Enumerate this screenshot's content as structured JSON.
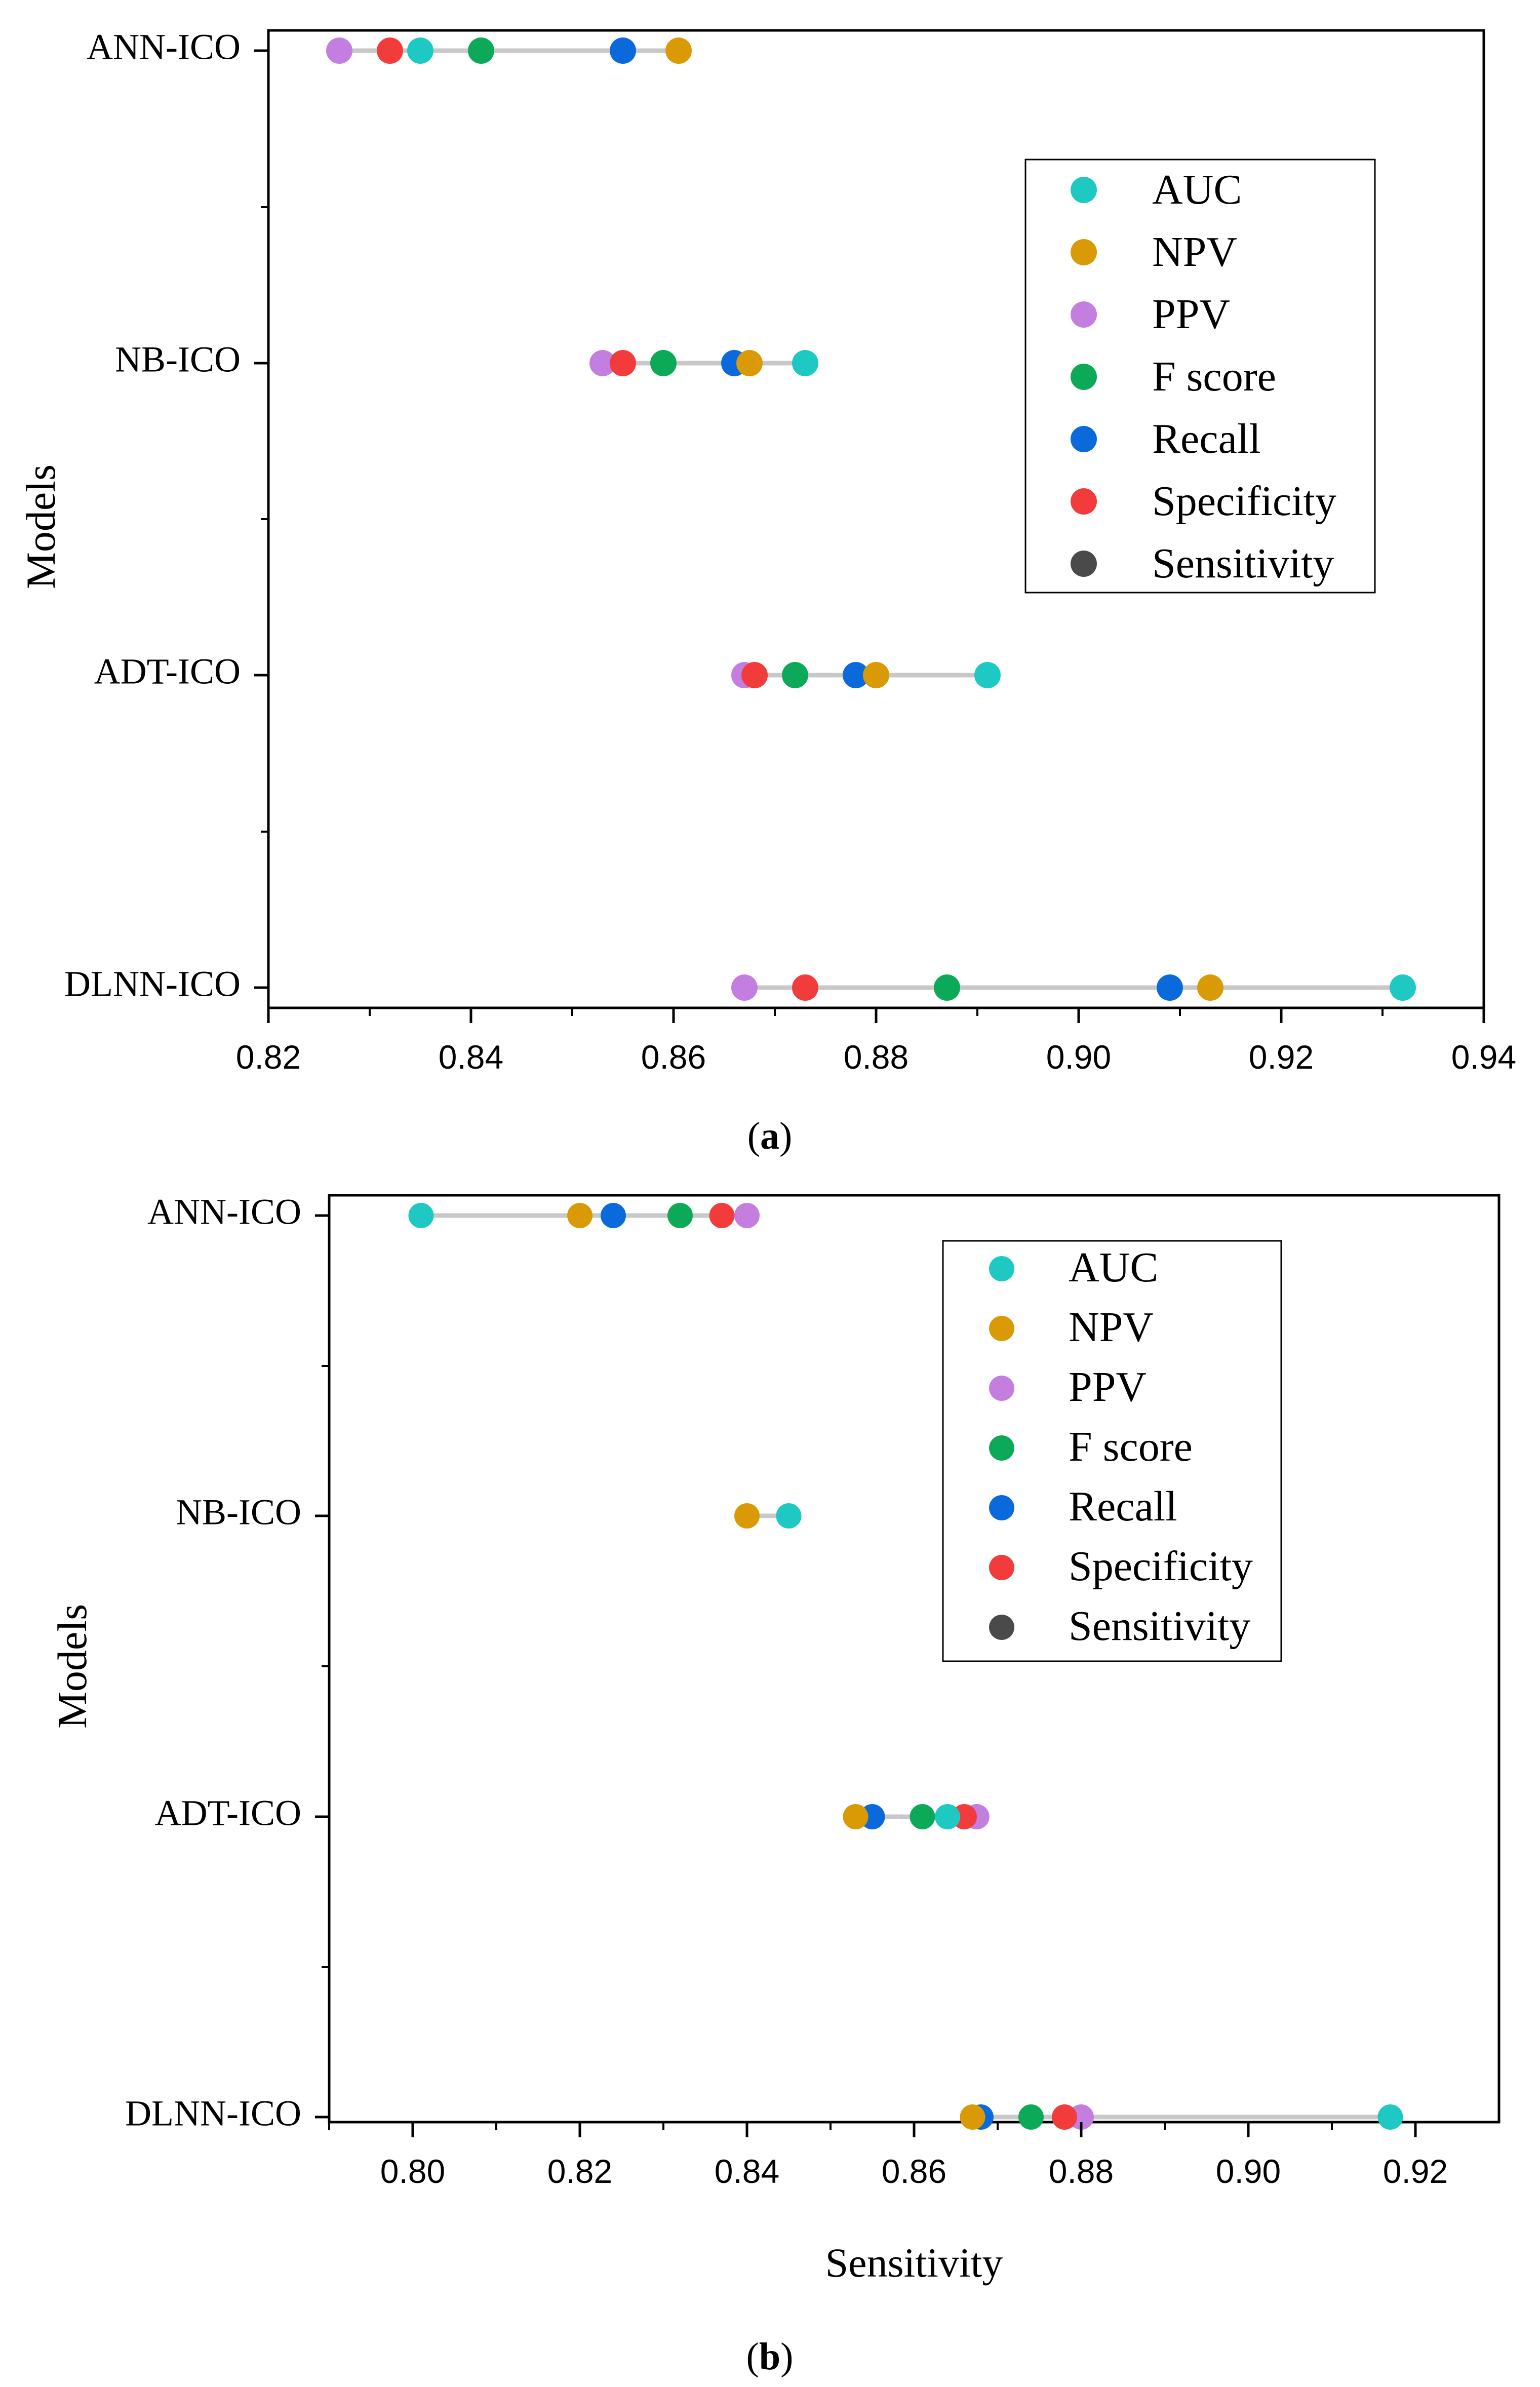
{
  "colors": {
    "AUC": "#1ec9c3",
    "NPV": "#d99a06",
    "PPV": "#c47ee0",
    "F score": "#0caa58",
    "Recall": "#0a6adb",
    "Specificity": "#f23c3c",
    "Sensitivity": "#4a4a4a",
    "connector": "#c8c8c8",
    "axis": "#000000"
  },
  "chart_data": [
    {
      "type": "dot",
      "panel_label": "a",
      "ylabel": "Models",
      "xlabel": "",
      "xlim": [
        0.82,
        0.94
      ],
      "xticks": [
        "0.82",
        "0.84",
        "0.86",
        "0.88",
        "0.90",
        "0.92",
        "0.94"
      ],
      "categories": [
        "ANN-ICO",
        "NB-ICO",
        "ADT-ICO",
        "DLNN-ICO"
      ],
      "legend": [
        "AUC",
        "NPV",
        "PPV",
        "F score",
        "Recall",
        "Specificity",
        "Sensitivity"
      ],
      "legend_position": "upper-right",
      "series": [
        {
          "name": "AUC",
          "values": [
            0.835,
            0.873,
            0.891,
            0.932
          ]
        },
        {
          "name": "NPV",
          "values": [
            0.8605,
            0.8675,
            0.88,
            0.913
          ]
        },
        {
          "name": "PPV",
          "values": [
            0.827,
            0.853,
            0.867,
            0.867
          ]
        },
        {
          "name": "F score",
          "values": [
            0.841,
            0.859,
            0.872,
            0.887
          ]
        },
        {
          "name": "Recall",
          "values": [
            0.855,
            0.866,
            0.878,
            0.909
          ]
        },
        {
          "name": "Specificity",
          "values": [
            0.832,
            0.855,
            0.868,
            0.873
          ]
        }
      ]
    },
    {
      "type": "dot",
      "panel_label": "b",
      "ylabel": "Models",
      "xlabel": "Sensitivity",
      "xlim": [
        0.79,
        0.93
      ],
      "xticks": [
        "0.80",
        "0.82",
        "0.84",
        "0.86",
        "0.88",
        "0.90",
        "0.92"
      ],
      "categories": [
        "ANN-ICO",
        "NB-ICO",
        "ADT-ICO",
        "DLNN-ICO"
      ],
      "legend": [
        "AUC",
        "NPV",
        "PPV",
        "F score",
        "Recall",
        "Specificity",
        "Sensitivity"
      ],
      "legend_position": "upper-right",
      "series": [
        {
          "name": "AUC",
          "values": [
            0.801,
            0.845,
            0.864,
            0.917
          ]
        },
        {
          "name": "NPV",
          "values": [
            0.82,
            0.84,
            0.853,
            0.867
          ]
        },
        {
          "name": "PPV",
          "values": [
            0.84,
            null,
            0.8675,
            0.88
          ]
        },
        {
          "name": "F score",
          "values": [
            0.832,
            null,
            0.861,
            0.874
          ]
        },
        {
          "name": "Recall",
          "values": [
            0.824,
            null,
            0.855,
            0.868
          ]
        },
        {
          "name": "Specificity",
          "values": [
            0.837,
            null,
            0.866,
            0.878
          ]
        }
      ]
    }
  ]
}
